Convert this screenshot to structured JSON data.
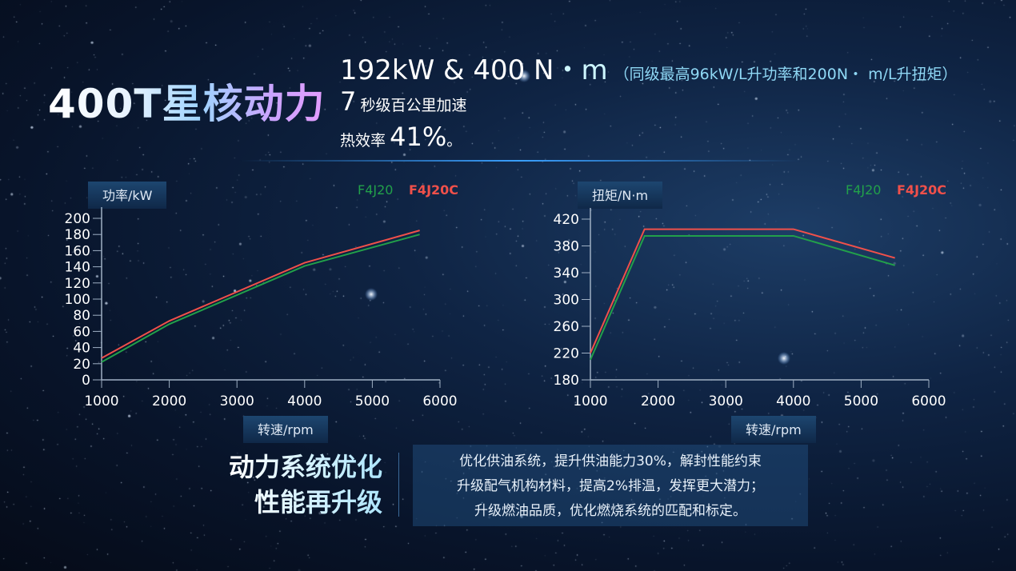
{
  "header": {
    "title": "400T星核动力",
    "line1_value": "192kW & 400 N",
    "line1_dot": "・m",
    "line1_note": "（同级最高96kW/L升功率和200N・ m/L升扭矩）",
    "line2_value": "7",
    "line2_text": "秒级百公里加速",
    "line3_text": "热效率",
    "line3_value": "41%",
    "line3_end": "。"
  },
  "colors": {
    "F4J20": "#22a04a",
    "F4J20C": "#f0504a"
  },
  "chart_data": [
    {
      "type": "line",
      "ylabel": "功率/kW",
      "xlabel": "转速/rpm",
      "xlim": [
        1000,
        6000
      ],
      "ylim": [
        0,
        200
      ],
      "xticks": [
        1000,
        2000,
        3000,
        4000,
        5000,
        6000
      ],
      "yticks": [
        0,
        20,
        40,
        60,
        80,
        100,
        120,
        140,
        160,
        180,
        200
      ],
      "legend": "top-right",
      "grid": false,
      "series": [
        {
          "name": "F4J20",
          "x": [
            1000,
            2000,
            4000,
            5700
          ],
          "y": [
            22,
            69,
            141,
            180
          ]
        },
        {
          "name": "F4J20C",
          "x": [
            1000,
            2000,
            4000,
            5700
          ],
          "y": [
            27,
            73,
            145,
            185
          ]
        }
      ]
    },
    {
      "type": "line",
      "ylabel": "扭矩/N·m",
      "xlabel": "转速/rpm",
      "xlim": [
        1000,
        6000
      ],
      "ylim": [
        180,
        420
      ],
      "xticks": [
        1000,
        2000,
        3000,
        4000,
        5000,
        6000
      ],
      "yticks": [
        180,
        220,
        260,
        300,
        340,
        380,
        420
      ],
      "legend": "top-right",
      "grid": false,
      "series": [
        {
          "name": "F4J20",
          "x": [
            1000,
            1800,
            4000,
            5500
          ],
          "y": [
            210,
            395,
            395,
            351
          ]
        },
        {
          "name": "F4J20C",
          "x": [
            1000,
            1800,
            4000,
            5500
          ],
          "y": [
            220,
            405,
            405,
            362
          ]
        }
      ]
    }
  ],
  "footer": {
    "slogan": [
      "动力系统优化",
      "性能再升级"
    ],
    "bullets": [
      "优化供油系统，提升供油能力30%，解封性能约束",
      "升级配气机构材料，提高2%排温，发挥更大潜力；",
      "升级燃油品质，优化燃烧系统的匹配和标定。"
    ]
  }
}
